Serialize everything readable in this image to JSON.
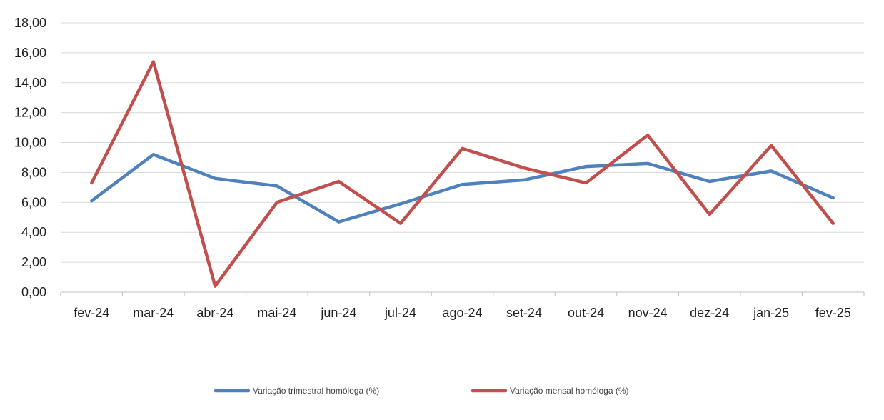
{
  "chart_data": {
    "type": "line",
    "title": "",
    "xlabel": "",
    "ylabel": "",
    "categories": [
      "fev-24",
      "mar-24",
      "abr-24",
      "mai-24",
      "jun-24",
      "jul-24",
      "ago-24",
      "set-24",
      "out-24",
      "nov-24",
      "dez-24",
      "jan-25",
      "fev-25"
    ],
    "ylim": [
      0,
      18
    ],
    "yticks": [
      0,
      2,
      4,
      6,
      8,
      10,
      12,
      14,
      16,
      18
    ],
    "ytick_labels": [
      "0,00",
      "2,00",
      "4,00",
      "6,00",
      "8,00",
      "10,00",
      "12,00",
      "14,00",
      "16,00",
      "18,00"
    ],
    "grid": true,
    "legend_position": "bottom",
    "series": [
      {
        "name": "Variação trimestral homóloga (%)",
        "color": "#4F81BD",
        "values": [
          6.1,
          9.2,
          7.6,
          7.1,
          4.7,
          5.9,
          7.2,
          7.5,
          8.4,
          8.6,
          7.4,
          8.1,
          6.3
        ]
      },
      {
        "name": "Variação mensal homóloga (%)",
        "color": "#C0504D",
        "values": [
          7.3,
          15.4,
          0.4,
          6.0,
          7.4,
          4.6,
          9.6,
          8.3,
          7.3,
          10.5,
          5.2,
          9.8,
          4.6
        ]
      }
    ]
  }
}
